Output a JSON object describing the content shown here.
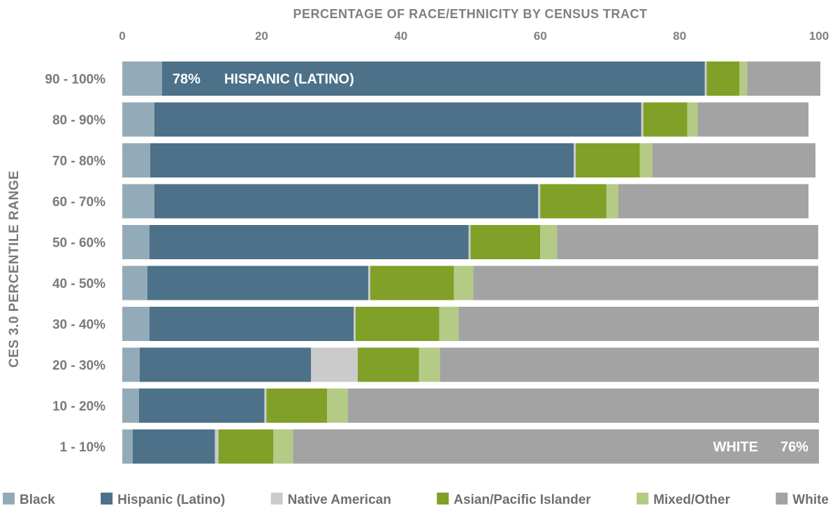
{
  "chart_data": {
    "type": "bar",
    "orientation": "horizontal",
    "stacked": true,
    "title": "PERCENTAGE OF RACE/ETHNICITY BY CENSUS TRACT",
    "xlabel": "",
    "ylabel": "CES 3.0 PERCENTILE RANGE",
    "xlim": [
      0,
      100
    ],
    "x_ticks": [
      "0",
      "20",
      "40",
      "60",
      "80",
      "100"
    ],
    "x_tick_values": [
      0,
      20,
      40,
      60,
      80,
      100
    ],
    "x_axis_position": "top",
    "grid": false,
    "legend_position": "bottom",
    "categories": [
      "90 - 100%",
      "80 - 90%",
      "70 - 80%",
      "60 - 70%",
      "50 - 60%",
      "40 - 50%",
      "30 - 40%",
      "20 - 30%",
      "10 - 20%",
      "1 - 10%"
    ],
    "series": [
      {
        "name": "Black",
        "color": "#93abb9",
        "values": [
          5.7,
          4.6,
          4.0,
          4.6,
          3.9,
          3.6,
          3.9,
          2.5,
          2.4,
          1.5
        ]
      },
      {
        "name": "Hispanic (Latino)",
        "color": "#4c7189",
        "values": [
          77.9,
          69.9,
          60.8,
          55.1,
          45.8,
          31.7,
          29.3,
          24.6,
          18.0,
          11.8
        ]
      },
      {
        "name": "Native American",
        "color": "#cbcbcb",
        "values": [
          0.3,
          0.3,
          0.3,
          0.3,
          0.3,
          0.3,
          0.3,
          6.7,
          0.3,
          0.5
        ]
      },
      {
        "name": "Asian/Pacific Islander",
        "color": "#80a028",
        "values": [
          4.7,
          6.3,
          9.2,
          9.5,
          10.0,
          12.0,
          12.0,
          8.8,
          8.7,
          7.9
        ]
      },
      {
        "name": "Mixed/Other",
        "color": "#b3cb85",
        "values": [
          1.1,
          1.5,
          1.8,
          1.7,
          2.4,
          2.8,
          2.8,
          3.0,
          3.0,
          2.8
        ]
      },
      {
        "name": "White",
        "color": "#a3a3a3",
        "values": [
          10.5,
          15.9,
          23.4,
          27.3,
          37.5,
          49.5,
          51.7,
          54.4,
          67.6,
          75.5
        ]
      }
    ],
    "annotations": [
      {
        "text": "78%",
        "category": "90 - 100%",
        "series": "Hispanic (Latino)"
      },
      {
        "text": "HISPANIC (LATINO)",
        "category": "90 - 100%",
        "series": "Hispanic (Latino)"
      },
      {
        "text": "WHITE",
        "category": "1 - 10%",
        "series": "White"
      },
      {
        "text": "76%",
        "category": "1 - 10%",
        "series": "White"
      }
    ]
  }
}
